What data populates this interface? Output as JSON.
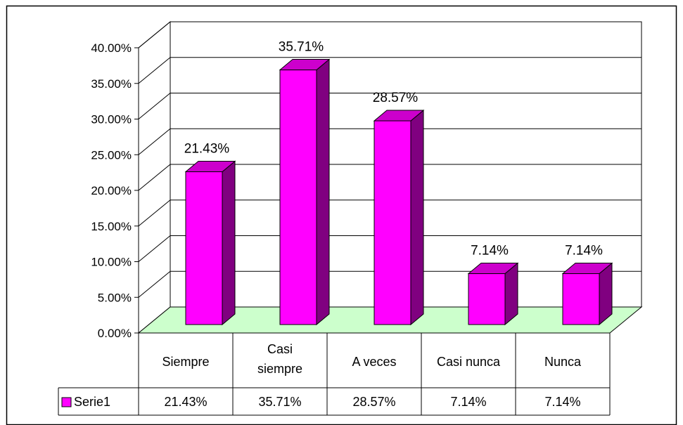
{
  "chart_data": {
    "type": "bar",
    "title": "",
    "xlabel": "",
    "ylabel": "",
    "ylim": [
      0,
      40
    ],
    "y_ticks": [
      "0.00%",
      "5.00%",
      "10.00%",
      "15.00%",
      "20.00%",
      "25.00%",
      "30.00%",
      "35.00%",
      "40.00%"
    ],
    "categories": [
      "Siempre",
      "Casi siempre",
      "A veces",
      "Casi nunca",
      "Nunca"
    ],
    "series": [
      {
        "name": "Serie1",
        "values": [
          21.43,
          35.71,
          28.57,
          7.14,
          7.14
        ],
        "labels": [
          "21.43%",
          "35.71%",
          "28.57%",
          "7.14%",
          "7.14%"
        ]
      }
    ],
    "grid": true,
    "legend": "data-table",
    "bar_3d": true,
    "colors": {
      "bar_front": "#ff00ff",
      "bar_side": "#800080",
      "bar_top": "#cc00cc",
      "floor": "#ccffcc",
      "wall": "#ffffff",
      "frame": "#000000"
    }
  }
}
